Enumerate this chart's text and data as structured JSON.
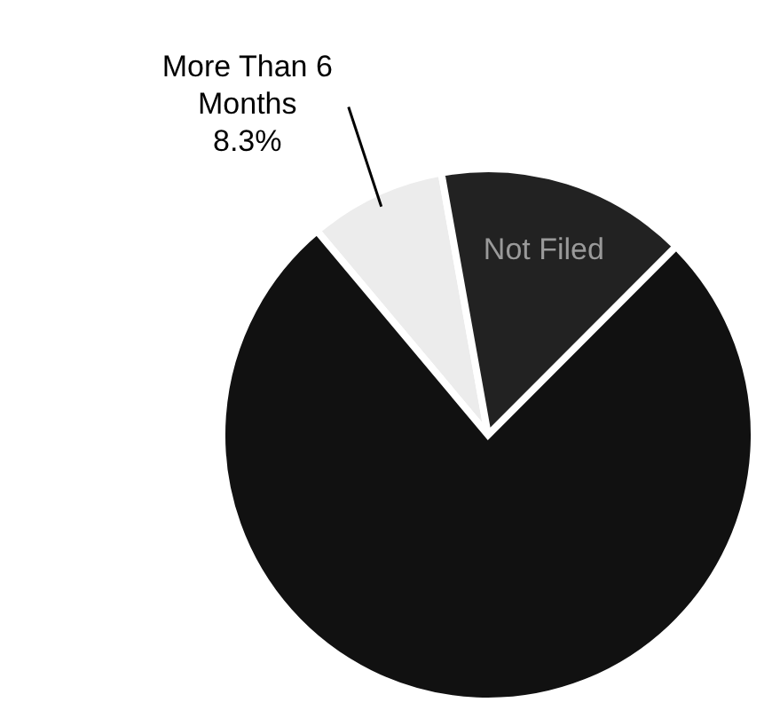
{
  "chart_data": {
    "type": "pie",
    "categories": [
      "More Than 6 Months",
      "Not Filed",
      null
    ],
    "values": [
      8.3,
      15.3,
      76.4
    ],
    "colors": [
      "#ececec",
      "#222222",
      "#111111"
    ],
    "value_labels": [
      "8.3%",
      null,
      null
    ]
  }
}
